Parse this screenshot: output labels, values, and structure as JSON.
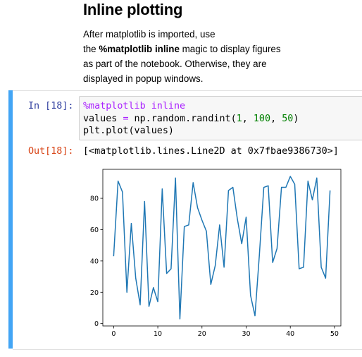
{
  "markdown": {
    "heading": "Inline plotting",
    "para_1": "After matplotlib is imported, use",
    "para_2_pre": "the ",
    "para_2_bold": "%matplotlib inline",
    "para_2_post": " magic to display figures",
    "para_3": "as part of the notebook. Otherwise, they are",
    "para_4": "displayed in popup windows."
  },
  "cell": {
    "accent_color": "#42a5f5",
    "in_prompt": "In [18]:",
    "out_prompt": "Out[18]:",
    "code": {
      "line1_magic": "%matplotlib inline",
      "line2_a": "values ",
      "line2_eq": "=",
      "line2_b": " np.random.randint(",
      "line2_n1": "1",
      "line2_c": ", ",
      "line2_n2": "100",
      "line2_d": ", ",
      "line2_n3": "50",
      "line2_e": ")",
      "line3": "plt.plot(values)"
    },
    "output_text": "[<matplotlib.lines.Line2D at 0x7fbae9386730>]"
  },
  "chart_data": {
    "type": "line",
    "title": "",
    "xlabel": "",
    "ylabel": "",
    "x_ticks": [
      0,
      10,
      20,
      30,
      40,
      50
    ],
    "y_ticks": [
      0,
      20,
      40,
      60,
      80
    ],
    "xlim": [
      -2.45,
      51.45
    ],
    "ylim": [
      -1.5,
      98.5
    ],
    "grid": false,
    "line_color": "#1f77b4",
    "series": [
      {
        "values": [
          43,
          91,
          84,
          20,
          64,
          29,
          12,
          78,
          11,
          23,
          14,
          86,
          32,
          35,
          93,
          3,
          62,
          63,
          90,
          74,
          66,
          59,
          25,
          37,
          63,
          36,
          85,
          87,
          67,
          51,
          68,
          18,
          5,
          44,
          87,
          88,
          39,
          48,
          87,
          87,
          94,
          89,
          35,
          36,
          91,
          79,
          93,
          36,
          29,
          85
        ]
      }
    ]
  }
}
